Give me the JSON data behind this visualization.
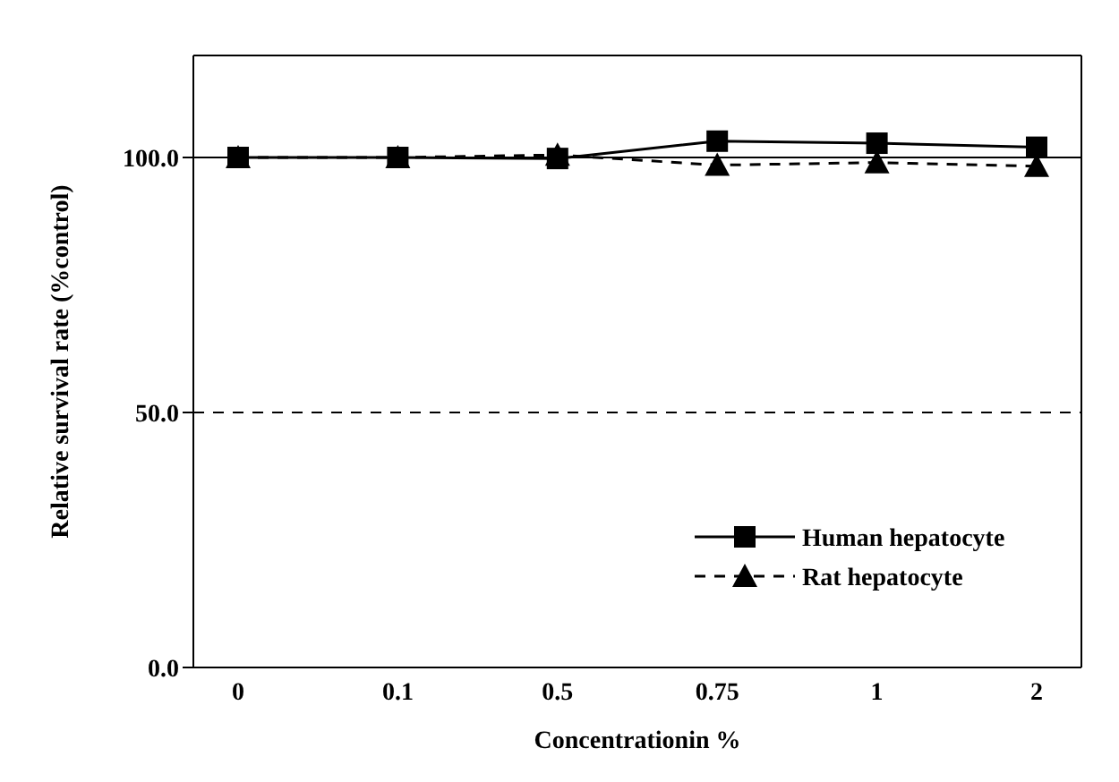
{
  "chart_data": {
    "type": "line",
    "xlabel": "Concentrationin %",
    "ylabel": "Relative survival rate (%control)",
    "categories": [
      "0",
      "0.1",
      "0.5",
      "0.75",
      "1",
      "2"
    ],
    "series": [
      {
        "name": "Human hepatocyte",
        "color": "#000000",
        "marker": "square",
        "line_style": "solid",
        "values": [
          100,
          100,
          99.8,
          103.2,
          102.8,
          102
        ]
      },
      {
        "name": "Rat hepatocyte",
        "color": "#000000",
        "marker": "triangle",
        "line_style": "dashed",
        "values": [
          100,
          100,
          100.5,
          98.5,
          99,
          98.3
        ]
      }
    ],
    "ylim": [
      0,
      120
    ],
    "yticks": [
      {
        "value": 0,
        "label": "0.0"
      },
      {
        "value": 50,
        "label": "50.0"
      },
      {
        "value": 100,
        "label": "100.0"
      }
    ],
    "ref_lines": [
      {
        "axis": "y",
        "value": 100,
        "color": "#000000",
        "line_style": "solid"
      },
      {
        "axis": "y",
        "value": 50,
        "color": "#000000",
        "line_style": "dashed"
      }
    ],
    "grid": false,
    "legend": "bottom right"
  }
}
